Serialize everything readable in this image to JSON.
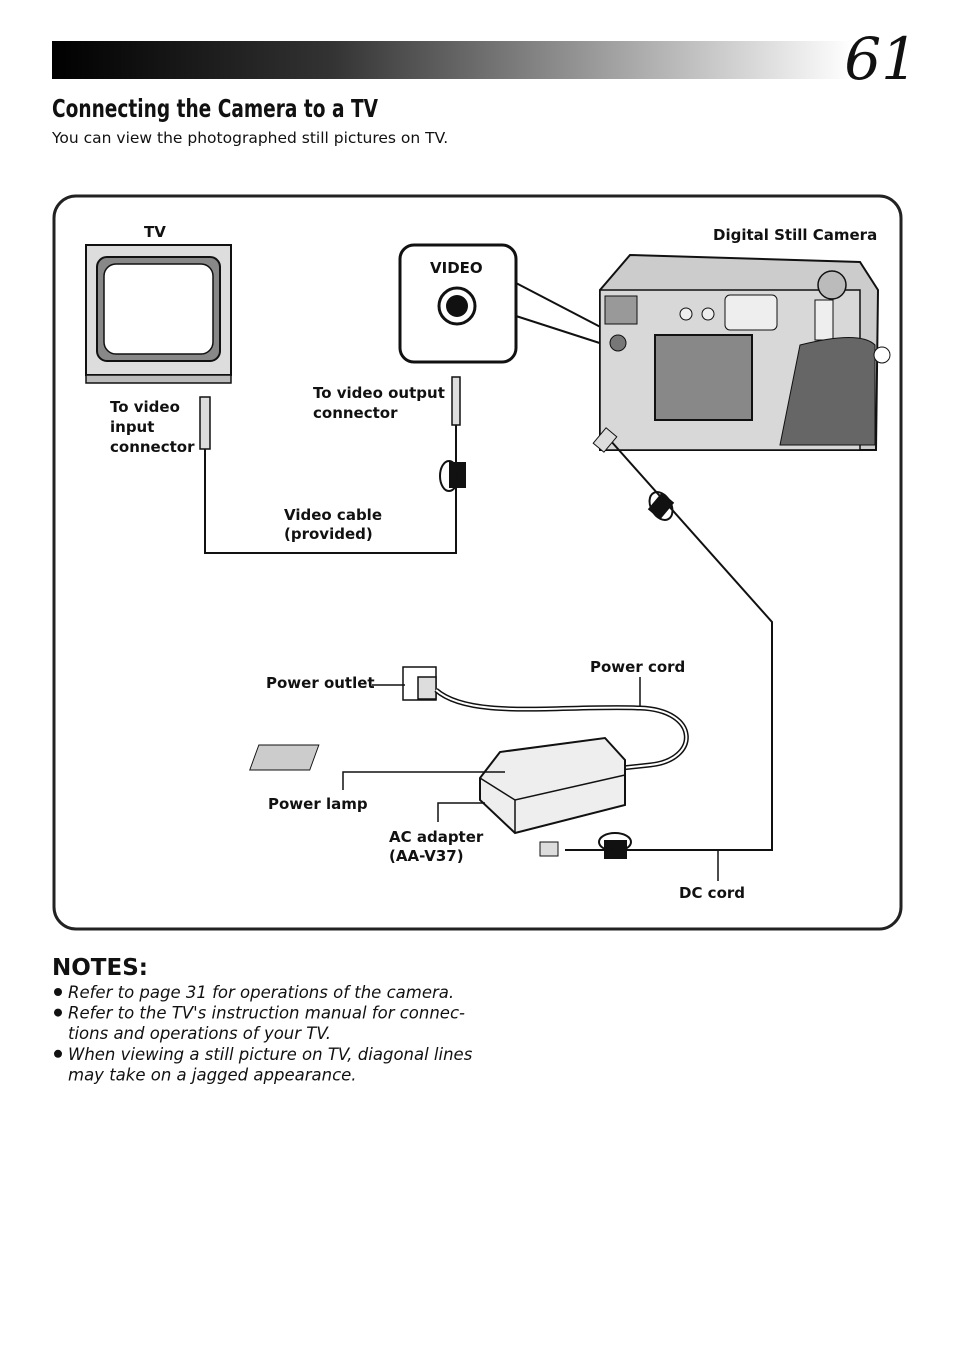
{
  "header": {
    "page_number": "61",
    "title": "Connecting the Camera to a TV",
    "subtitle": "You can view the photographed still pictures on TV."
  },
  "diagram": {
    "tv": "TV",
    "camera": "Digital Still Camera",
    "video_jack": "VIDEO",
    "video_input": [
      "To video",
      "input",
      "connector"
    ],
    "video_output": [
      "To video output",
      "connector"
    ],
    "video_cable": [
      "Video cable",
      "(provided)"
    ],
    "power_outlet": "Power outlet",
    "power_cord": "Power cord",
    "power_lamp": "Power lamp",
    "ac_adapter": [
      "AC adapter",
      "(AA-V37)"
    ],
    "dc_cord": "DC cord"
  },
  "notes": {
    "heading": "NOTES:",
    "items": [
      [
        "Refer to page 31 for operations of the camera."
      ],
      [
        "Refer to the TV's instruction manual for connec-",
        "tions and operations of your TV."
      ],
      [
        "When viewing a still picture on TV, diagonal lines",
        "may take on a jagged appearance."
      ]
    ]
  }
}
